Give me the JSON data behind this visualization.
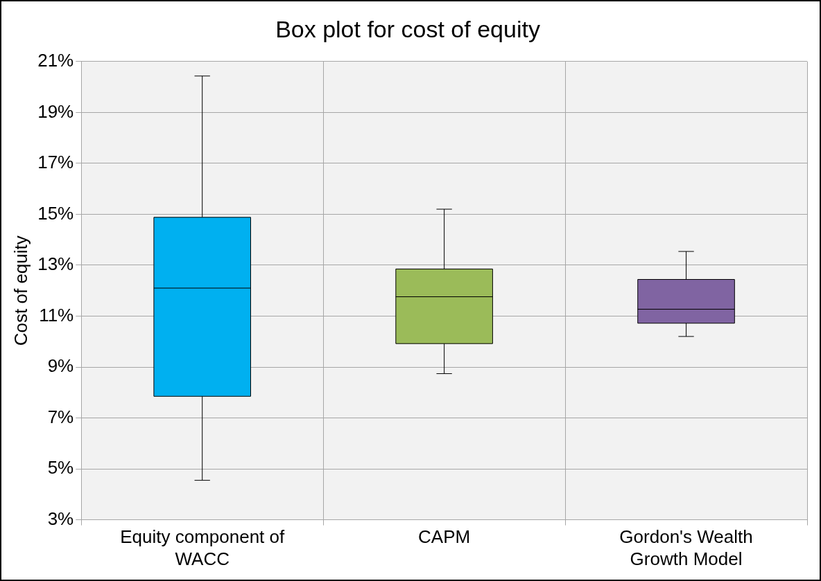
{
  "chart_data": {
    "type": "box",
    "title": "Box plot for cost of equity",
    "ylabel": "Cost of equity",
    "categories": [
      "Equity component of WACC",
      "CAPM",
      "Gordon's Wealth Growth Model"
    ],
    "colors": [
      "#00b0f0",
      "#9bbb59",
      "#8064a2"
    ],
    "boxes": [
      {
        "low": 4.55,
        "q1": 7.85,
        "median": 12.1,
        "q3": 14.88,
        "high": 20.43
      },
      {
        "low": 8.74,
        "q1": 9.92,
        "median": 11.76,
        "q3": 12.85,
        "high": 15.2
      },
      {
        "low": 10.2,
        "q1": 10.72,
        "median": 11.27,
        "q3": 12.44,
        "high": 13.54
      }
    ],
    "ylim": [
      3,
      21
    ],
    "yticks": [
      {
        "value": 3,
        "label": "3%"
      },
      {
        "value": 5,
        "label": "5%"
      },
      {
        "value": 7,
        "label": "7%"
      },
      {
        "value": 9,
        "label": "9%"
      },
      {
        "value": 11,
        "label": "11%"
      },
      {
        "value": 13,
        "label": "13%"
      },
      {
        "value": 15,
        "label": "15%"
      },
      {
        "value": 17,
        "label": "17%"
      },
      {
        "value": 19,
        "label": "19%"
      },
      {
        "value": 21,
        "label": "21%"
      }
    ],
    "grid": true,
    "legend": false
  }
}
